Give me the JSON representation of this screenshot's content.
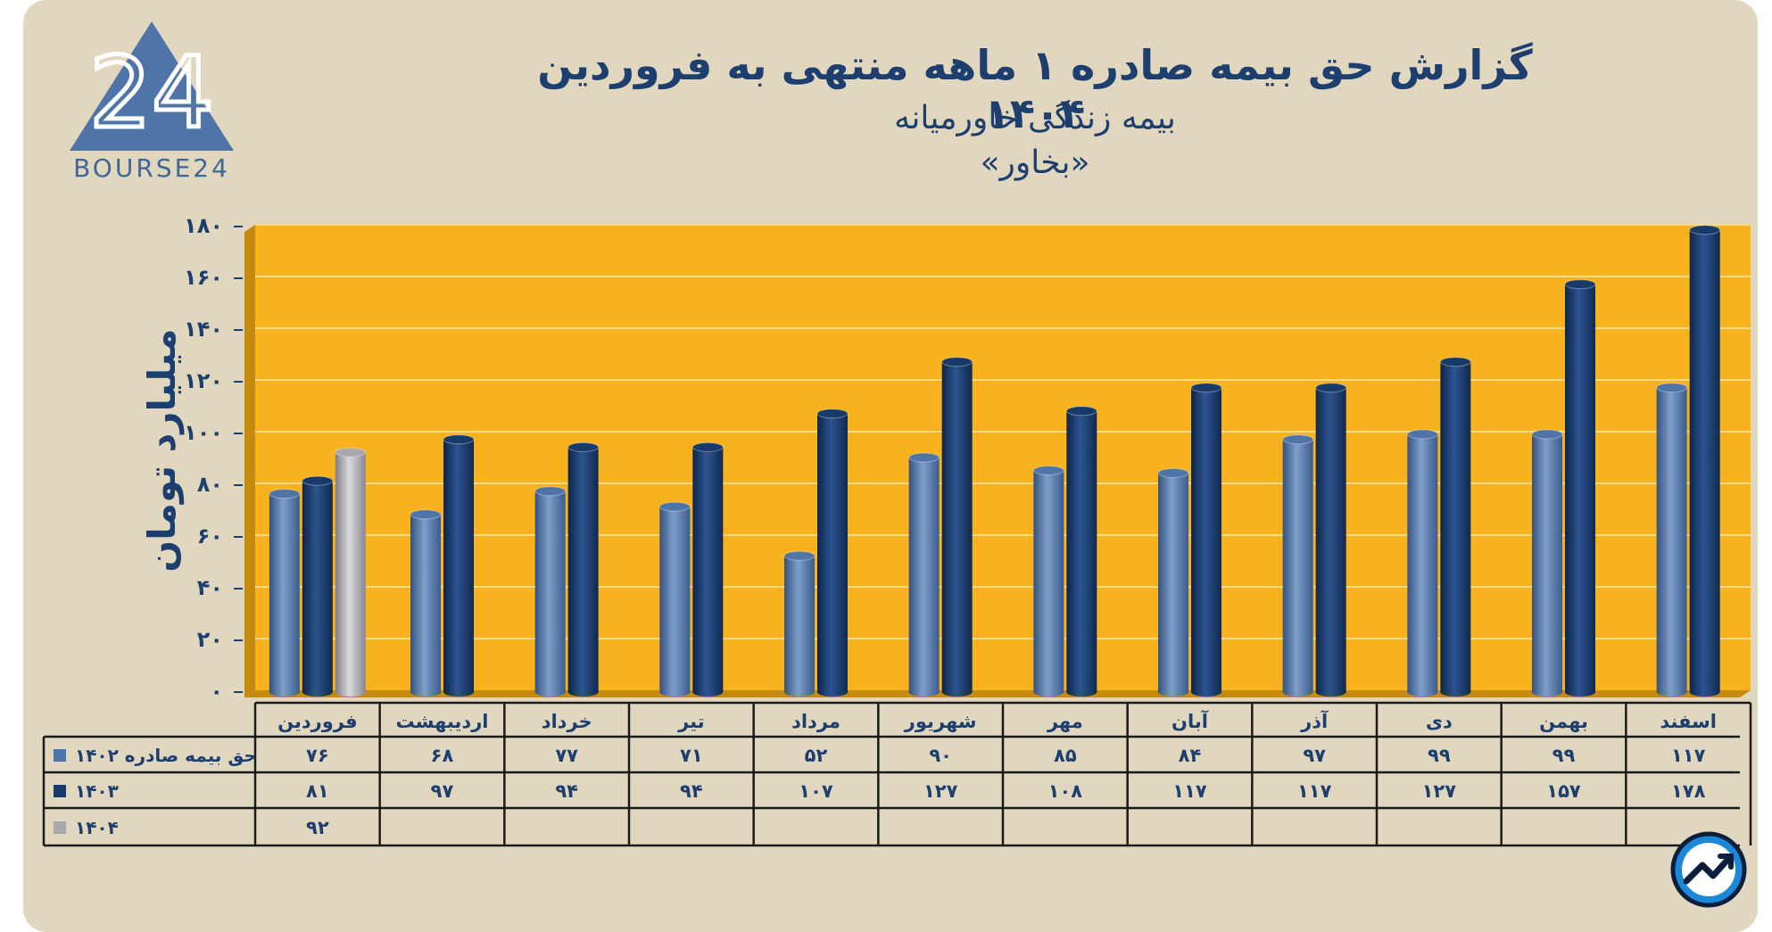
{
  "logo": {
    "wordmark": "BOURSE24",
    "glyph": "24"
  },
  "title": {
    "main": "گزارش  حق بیمه صادره ۱ ماهه منتهی به فروردین ۱۴۰۴",
    "subtitle": "بیمه زندگی خاورمیانه",
    "ticker": "«بخاور»"
  },
  "chart_data": {
    "type": "bar",
    "ylabel": "میلیارد تومان",
    "ylim": [
      0,
      180
    ],
    "yticks": [
      0,
      20,
      40,
      60,
      80,
      100,
      120,
      140,
      160,
      180
    ],
    "ytick_labels": [
      "۰",
      "۲۰",
      "۴۰",
      "۶۰",
      "۸۰",
      "۱۰۰",
      "۱۲۰",
      "۱۴۰",
      "۱۶۰",
      "۱۸۰"
    ],
    "categories": [
      "فروردین",
      "اردیبهشت",
      "خرداد",
      "تیر",
      "مرداد",
      "شهریور",
      "مهر",
      "آبان",
      "آذر",
      "دی",
      "بهمن",
      "اسفند"
    ],
    "series": [
      {
        "name": "حق بیمه صادره ۱۴۰۲",
        "color": "#4f74a8",
        "values": [
          76,
          68,
          77,
          71,
          52,
          90,
          85,
          84,
          97,
          99,
          99,
          117
        ],
        "labels": [
          "۷۶",
          "۶۸",
          "۷۷",
          "۷۱",
          "۵۲",
          "۹۰",
          "۸۵",
          "۸۴",
          "۹۷",
          "۹۹",
          "۹۹",
          "۱۱۷"
        ]
      },
      {
        "name": "۱۴۰۳",
        "color": "#173a6b",
        "values": [
          81,
          97,
          94,
          94,
          107,
          127,
          108,
          117,
          117,
          127,
          157,
          178
        ],
        "labels": [
          "۸۱",
          "۹۷",
          "۹۴",
          "۹۴",
          "۱۰۷",
          "۱۲۷",
          "۱۰۸",
          "۱۱۷",
          "۱۱۷",
          "۱۲۷",
          "۱۵۷",
          "۱۷۸"
        ]
      },
      {
        "name": "۱۴۰۴",
        "color": "#a8a8ad",
        "values": [
          92,
          null,
          null,
          null,
          null,
          null,
          null,
          null,
          null,
          null,
          null,
          null
        ],
        "labels": [
          "۹۲",
          "",
          "",
          "",
          "",
          "",
          "",
          "",
          "",
          "",
          "",
          ""
        ]
      }
    ],
    "grid": true,
    "legend": "table-left",
    "plot_background": "#f7b21d",
    "frame_color": "#c68a0f"
  }
}
